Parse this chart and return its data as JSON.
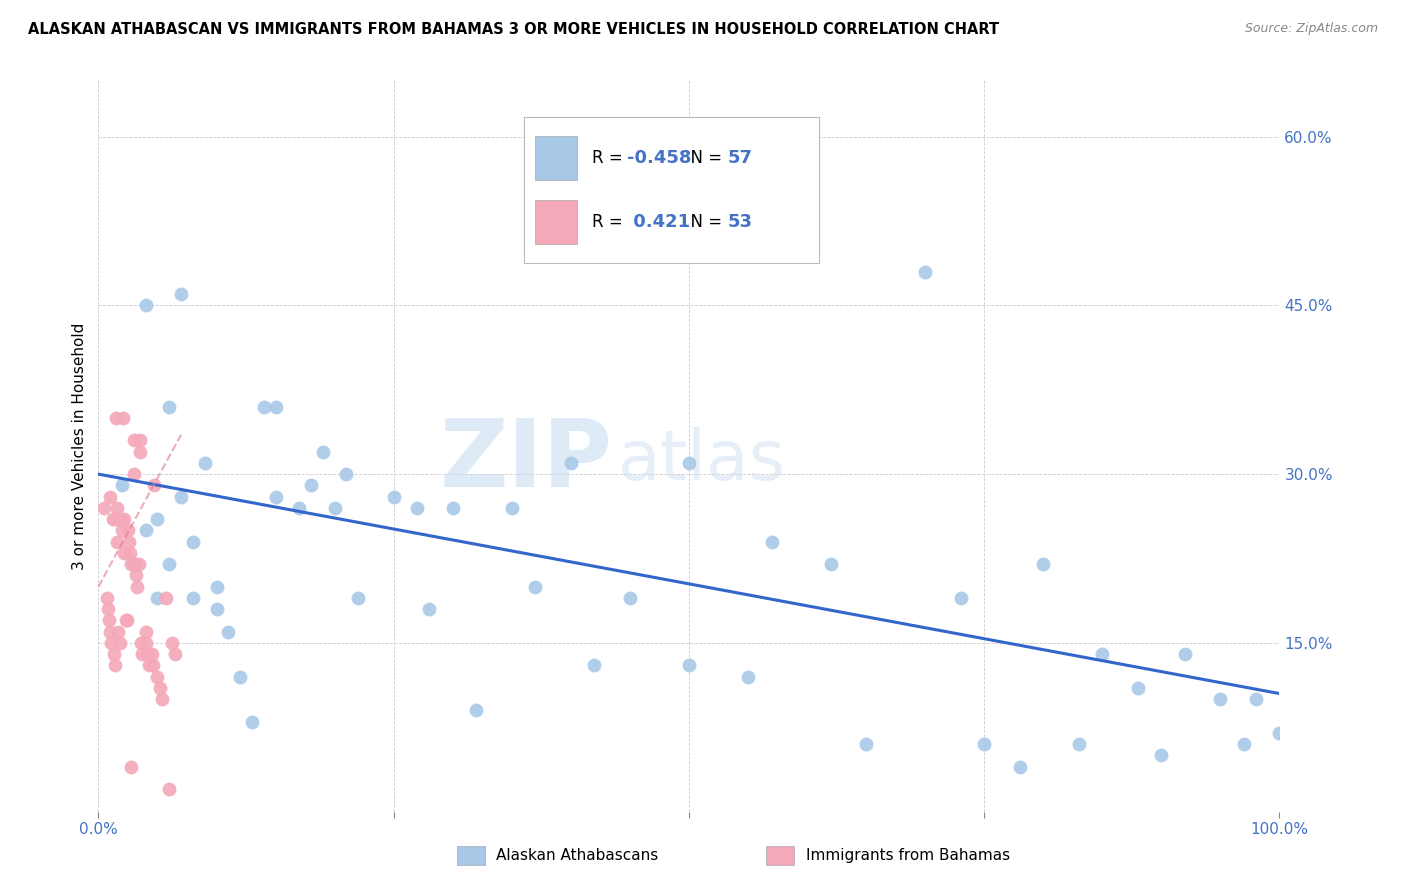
{
  "title": "ALASKAN ATHABASCAN VS IMMIGRANTS FROM BAHAMAS 3 OR MORE VEHICLES IN HOUSEHOLD CORRELATION CHART",
  "source": "Source: ZipAtlas.com",
  "ylabel": "3 or more Vehicles in Household",
  "ytick_vals": [
    0.15,
    0.3,
    0.45,
    0.6
  ],
  "ytick_labels": [
    "15.0%",
    "30.0%",
    "45.0%",
    "60.0%"
  ],
  "xtick_vals": [
    0.0,
    0.25,
    0.5,
    0.75,
    1.0
  ],
  "xtick_labels": [
    "0.0%",
    "",
    "",
    "",
    "100.0%"
  ],
  "xrange": [
    0.0,
    1.0
  ],
  "yrange": [
    0.0,
    0.65
  ],
  "legend1_label": "Alaskan Athabascans",
  "legend2_label": "Immigrants from Bahamas",
  "r1": -0.458,
  "n1": 57,
  "r2": 0.421,
  "n2": 53,
  "color_blue": "#a8c8e8",
  "color_pink": "#f4a8b8",
  "line_blue": "#3366cc",
  "watermark_zip": "ZIP",
  "watermark_atlas": "atlas",
  "blue_scatter_x": [
    0.02,
    0.03,
    0.04,
    0.05,
    0.05,
    0.06,
    0.07,
    0.07,
    0.08,
    0.08,
    0.09,
    0.1,
    0.11,
    0.12,
    0.13,
    0.14,
    0.15,
    0.15,
    0.17,
    0.18,
    0.19,
    0.2,
    0.21,
    0.22,
    0.25,
    0.27,
    0.28,
    0.3,
    0.32,
    0.35,
    0.37,
    0.4,
    0.42,
    0.45,
    0.5,
    0.5,
    0.55,
    0.57,
    0.62,
    0.65,
    0.7,
    0.73,
    0.75,
    0.78,
    0.8,
    0.83,
    0.85,
    0.88,
    0.9,
    0.92,
    0.95,
    0.97,
    0.98,
    1.0,
    0.1,
    0.04,
    0.06
  ],
  "blue_scatter_y": [
    0.29,
    0.22,
    0.25,
    0.19,
    0.26,
    0.22,
    0.46,
    0.28,
    0.19,
    0.24,
    0.31,
    0.2,
    0.16,
    0.12,
    0.08,
    0.36,
    0.36,
    0.28,
    0.27,
    0.29,
    0.32,
    0.27,
    0.3,
    0.19,
    0.28,
    0.27,
    0.18,
    0.27,
    0.09,
    0.27,
    0.2,
    0.31,
    0.13,
    0.19,
    0.13,
    0.31,
    0.12,
    0.24,
    0.22,
    0.06,
    0.48,
    0.19,
    0.06,
    0.04,
    0.22,
    0.06,
    0.14,
    0.11,
    0.05,
    0.14,
    0.1,
    0.06,
    0.1,
    0.07,
    0.18,
    0.45,
    0.36
  ],
  "pink_scatter_x": [
    0.005,
    0.007,
    0.008,
    0.009,
    0.01,
    0.01,
    0.011,
    0.012,
    0.013,
    0.014,
    0.015,
    0.015,
    0.016,
    0.016,
    0.017,
    0.018,
    0.019,
    0.02,
    0.021,
    0.022,
    0.022,
    0.023,
    0.024,
    0.025,
    0.026,
    0.027,
    0.028,
    0.03,
    0.03,
    0.031,
    0.032,
    0.033,
    0.034,
    0.035,
    0.035,
    0.036,
    0.037,
    0.04,
    0.04,
    0.041,
    0.042,
    0.043,
    0.045,
    0.046,
    0.047,
    0.05,
    0.052,
    0.054,
    0.057,
    0.06,
    0.062,
    0.065,
    0.028
  ],
  "pink_scatter_y": [
    0.27,
    0.19,
    0.18,
    0.17,
    0.28,
    0.16,
    0.15,
    0.26,
    0.14,
    0.13,
    0.35,
    0.26,
    0.27,
    0.24,
    0.16,
    0.15,
    0.26,
    0.25,
    0.35,
    0.26,
    0.23,
    0.17,
    0.17,
    0.25,
    0.24,
    0.23,
    0.22,
    0.33,
    0.3,
    0.22,
    0.21,
    0.2,
    0.22,
    0.33,
    0.32,
    0.15,
    0.14,
    0.16,
    0.15,
    0.14,
    0.14,
    0.13,
    0.14,
    0.13,
    0.29,
    0.12,
    0.11,
    0.1,
    0.19,
    0.02,
    0.15,
    0.14,
    0.04
  ],
  "blue_line_x": [
    0.0,
    1.0
  ],
  "blue_line_y": [
    0.3,
    0.105
  ],
  "pink_line_x": [
    0.0,
    0.07
  ],
  "pink_line_y": [
    0.2,
    0.335
  ]
}
